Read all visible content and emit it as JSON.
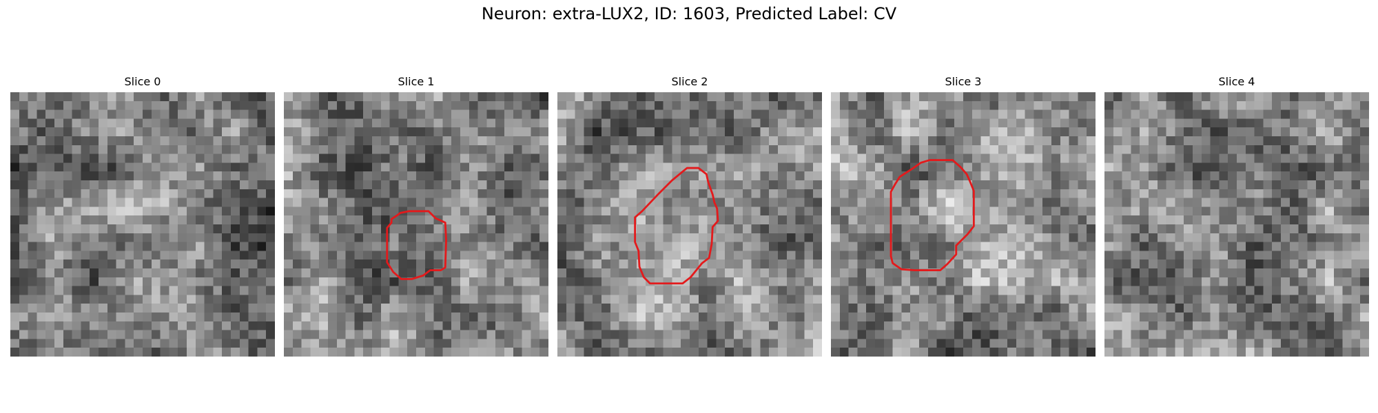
{
  "figure": {
    "title": "Neuron: extra-LUX2, ID: 1603, Predicted Label: CV"
  },
  "contour_color": "#e31a1c",
  "slices": [
    {
      "title": "Slice 0",
      "has_contour": false,
      "brightness": 0.42,
      "blob_strength": 0.18
    },
    {
      "title": "Slice 1",
      "has_contour": true,
      "brightness": 0.5,
      "blob_strength": -0.15
    },
    {
      "title": "Slice 2",
      "has_contour": true,
      "brightness": 0.5,
      "blob_strength": 0.18
    },
    {
      "title": "Slice 3",
      "has_contour": true,
      "brightness": 0.52,
      "blob_strength": 0.22
    },
    {
      "title": "Slice 4",
      "has_contour": false,
      "brightness": 0.52,
      "blob_strength": 0.05
    }
  ]
}
